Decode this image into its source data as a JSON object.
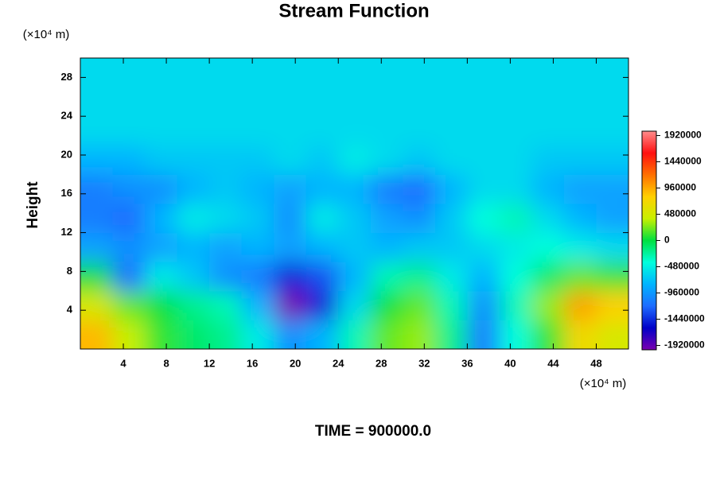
{
  "chart_data": {
    "type": "contour",
    "title": "Stream Function",
    "y_unit": "(×10⁴ m)",
    "x_unit": "(×10⁴ m)",
    "y_label": "Height",
    "footer": "TIME = 900000.0",
    "x": [
      1.5,
      4.5,
      7.5,
      10.5,
      13.5,
      16.5,
      19.5,
      22.5,
      25.5,
      28.5,
      31.5,
      34.5,
      37.5,
      40.5,
      43.5,
      46.5,
      49.5
    ],
    "y": [
      1.5,
      4.5,
      7.5,
      10.5,
      13.5,
      16.5,
      19.5,
      22.5,
      25.5,
      28.5
    ],
    "z": [
      [
        900000,
        400000,
        100000,
        -100000,
        -200000,
        -500000,
        -1000000,
        -800000,
        -300000,
        200000,
        300000,
        -200000,
        -1100000,
        -400000,
        100000,
        700000,
        500000
      ],
      [
        500000,
        200000,
        0,
        -200000,
        -300000,
        -800000,
        -2000000,
        -1500000,
        -600000,
        0,
        200000,
        -300000,
        -1000000,
        -300000,
        300000,
        1000000,
        800000
      ],
      [
        0,
        -1200000,
        -500000,
        -700000,
        -1000000,
        -1100000,
        -1500000,
        -1300000,
        -800000,
        -300000,
        -200000,
        -500000,
        -800000,
        -400000,
        -100000,
        200000,
        100000
      ],
      [
        -900000,
        -1000000,
        -900000,
        -800000,
        -900000,
        -800000,
        -900000,
        -800000,
        -700000,
        -800000,
        -700000,
        -700000,
        -600000,
        -500000,
        -400000,
        -500000,
        -600000
      ],
      [
        -1100000,
        -1200000,
        -800000,
        -500000,
        -600000,
        -700000,
        -1000000,
        -500000,
        -700000,
        -900000,
        -1000000,
        -700000,
        -400000,
        -300000,
        -600000,
        -800000,
        -900000
      ],
      [
        -1100000,
        -1000000,
        -1000000,
        -800000,
        -700000,
        -800000,
        -900000,
        -800000,
        -800000,
        -1100000,
        -1200000,
        -800000,
        -600000,
        -600000,
        -800000,
        -900000,
        -900000
      ],
      [
        -800000,
        -800000,
        -700000,
        -700000,
        -700000,
        -700000,
        -600000,
        -700000,
        -500000,
        -600000,
        -700000,
        -600000,
        -600000,
        -600000,
        -700000,
        -700000,
        -700000
      ],
      [
        -600000,
        -600000,
        -600000,
        -600000,
        -600000,
        -600000,
        -600000,
        -600000,
        -600000,
        -600000,
        -600000,
        -600000,
        -600000,
        -600000,
        -600000,
        -600000,
        -600000
      ],
      [
        -600000,
        -600000,
        -600000,
        -600000,
        -600000,
        -600000,
        -600000,
        -600000,
        -600000,
        -600000,
        -600000,
        -600000,
        -600000,
        -600000,
        -600000,
        -600000,
        -600000
      ],
      [
        -600000,
        -600000,
        -600000,
        -600000,
        -600000,
        -600000,
        -600000,
        -600000,
        -600000,
        -600000,
        -600000,
        -600000,
        -600000,
        -600000,
        -600000,
        -600000,
        -600000
      ]
    ],
    "xlim": [
      0,
      51
    ],
    "ylim": [
      0,
      30
    ],
    "xticks": [
      4,
      8,
      12,
      16,
      20,
      24,
      28,
      32,
      36,
      40,
      44,
      48
    ],
    "yticks": [
      4,
      8,
      12,
      16,
      20,
      24,
      28
    ],
    "clim": [
      -2000000,
      2000000
    ],
    "cticks": [
      -1920000,
      -1440000,
      -960000,
      -480000,
      0,
      480000,
      960000,
      1440000,
      1920000
    ],
    "colormap": [
      "#7a00b0",
      "#0000c8",
      "#1e6cff",
      "#00b4ff",
      "#00ffdc",
      "#00e040",
      "#c8f000",
      "#ffd000",
      "#ff7000",
      "#ff1010",
      "#ff8c8c"
    ]
  }
}
